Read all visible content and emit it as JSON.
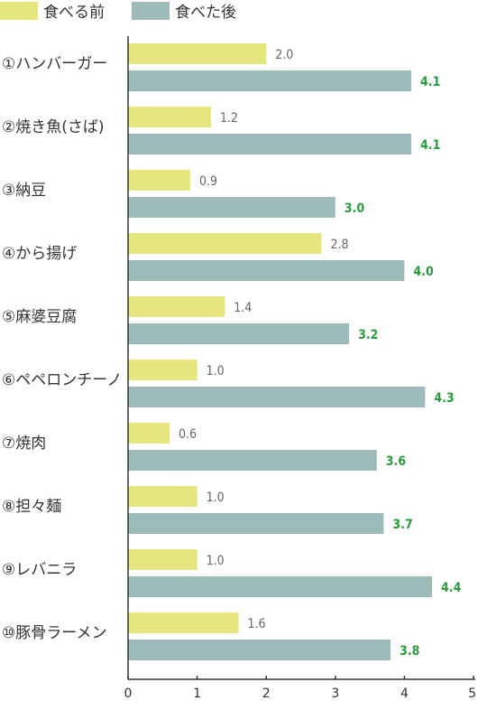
{
  "chart_data": {
    "type": "bar",
    "orientation": "horizontal",
    "categories": [
      "①ハンバーガー",
      "②焼き魚(さば)",
      "③納豆",
      "④から揚げ",
      "⑤麻婆豆腐",
      "⑥ペペロンチーノ",
      "⑦焼肉",
      "⑧担々麺",
      "⑨レバニラ",
      "⑩豚骨ラーメン"
    ],
    "series": [
      {
        "name": "食べる前",
        "color": "#e4e67d",
        "values": [
          2.0,
          1.2,
          0.9,
          2.8,
          1.4,
          1.0,
          0.6,
          1.0,
          1.0,
          1.6
        ],
        "labels": [
          "2.0",
          "1.2",
          "0.9",
          "2.8",
          "1.4",
          "1.0",
          "0.6",
          "1.0",
          "1.0",
          "1.6"
        ]
      },
      {
        "name": "食べた後",
        "color": "#9cbbb9",
        "values": [
          4.1,
          4.1,
          3.0,
          4.0,
          3.2,
          4.3,
          3.6,
          3.7,
          4.4,
          3.8
        ],
        "labels": [
          "4.1",
          "4.1",
          "3.0",
          "4.0",
          "3.2",
          "4.3",
          "3.6",
          "3.7",
          "4.4",
          "3.8"
        ]
      }
    ],
    "xlim": [
      0,
      5
    ],
    "xticks": [
      "0",
      "1",
      "2",
      "3",
      "4",
      "5"
    ],
    "legend_position": "top-left",
    "grid": false
  }
}
